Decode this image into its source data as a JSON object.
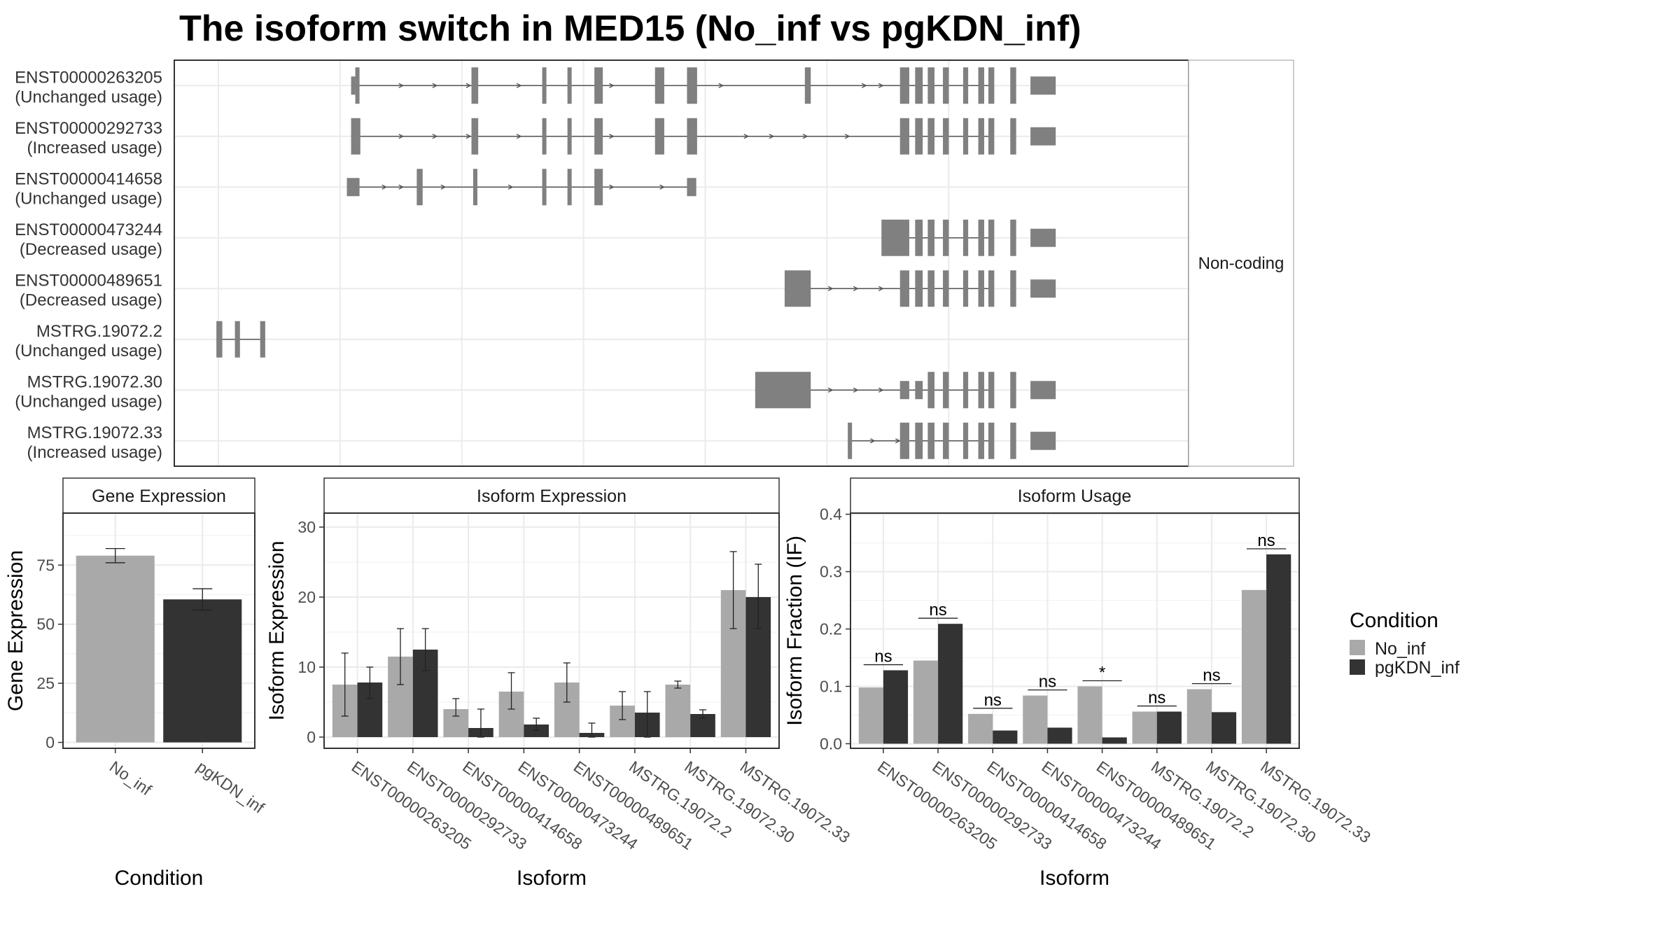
{
  "title": "The isoform switch in MED15 (No_inf vs pgKDN_inf)",
  "colors": {
    "no_inf": "#a9a9a9",
    "pgkdn_inf": "#333333",
    "exon": "#808080",
    "grid": "#ebebeb",
    "panel_border": "#333333",
    "strip_fill": "#ffffff"
  },
  "structure": {
    "side_label": "Non-coding",
    "transcripts": [
      {
        "id": "ENST00000263205",
        "usage": "(Unchanged usage)",
        "intron": [
          0.21,
          0.97
        ],
        "exons": [
          [
            0.21,
            0.215
          ],
          [
            0.215,
            0.22
          ],
          [
            0.353,
            0.361
          ],
          [
            0.437,
            0.442
          ],
          [
            0.467,
            0.472
          ],
          [
            0.499,
            0.509
          ],
          [
            0.571,
            0.582
          ],
          [
            0.609,
            0.621
          ],
          [
            0.749,
            0.756
          ],
          [
            0.862,
            0.873
          ],
          [
            0.88,
            0.889
          ],
          [
            0.895,
            0.903
          ],
          [
            0.913,
            0.92
          ],
          [
            0.937,
            0.943
          ],
          [
            0.955,
            0.962
          ],
          [
            0.967,
            0.974
          ],
          [
            0.993,
            1.0
          ],
          [
            1.017,
            1.047
          ]
        ],
        "thin": [
          [
            0.21,
            0.215
          ],
          [
            1.017,
            1.047
          ]
        ],
        "arrows": [
          0.27,
          0.31,
          0.35,
          0.41,
          0.52,
          0.65,
          0.82,
          0.84,
          0.87
        ]
      },
      {
        "id": "ENST00000292733",
        "usage": "(Increased usage)",
        "intron": [
          0.21,
          0.97
        ],
        "exons": [
          [
            0.21,
            0.221
          ],
          [
            0.353,
            0.361
          ],
          [
            0.437,
            0.442
          ],
          [
            0.467,
            0.472
          ],
          [
            0.499,
            0.509
          ],
          [
            0.571,
            0.582
          ],
          [
            0.609,
            0.621
          ],
          [
            0.862,
            0.873
          ],
          [
            0.88,
            0.889
          ],
          [
            0.895,
            0.903
          ],
          [
            0.913,
            0.92
          ],
          [
            0.937,
            0.943
          ],
          [
            0.955,
            0.962
          ],
          [
            0.967,
            0.974
          ],
          [
            0.993,
            1.0
          ],
          [
            1.017,
            1.047
          ]
        ],
        "thin": [
          [
            0.21,
            0.215
          ],
          [
            1.017,
            1.047
          ]
        ],
        "arrows": [
          0.27,
          0.31,
          0.35,
          0.41,
          0.52,
          0.68,
          0.71,
          0.75,
          0.8
        ]
      },
      {
        "id": "ENST00000414658",
        "usage": "(Unchanged usage)",
        "intron": [
          0.205,
          0.62
        ],
        "exons": [
          [
            0.205,
            0.22
          ],
          [
            0.288,
            0.295
          ],
          [
            0.355,
            0.36
          ],
          [
            0.437,
            0.442
          ],
          [
            0.467,
            0.472
          ],
          [
            0.499,
            0.509
          ],
          [
            0.609,
            0.62
          ]
        ],
        "thin": [
          [
            0.205,
            0.22
          ],
          [
            0.609,
            0.62
          ]
        ],
        "arrows": [
          0.25,
          0.27,
          0.32,
          0.4,
          0.52,
          0.58
        ]
      },
      {
        "id": "ENST00000473244",
        "usage": "(Decreased usage)",
        "intron": [
          0.84,
          0.97
        ],
        "exons": [
          [
            0.84,
            0.873
          ],
          [
            0.88,
            0.889
          ],
          [
            0.895,
            0.903
          ],
          [
            0.913,
            0.92
          ],
          [
            0.937,
            0.943
          ],
          [
            0.955,
            0.962
          ],
          [
            0.967,
            0.974
          ],
          [
            0.993,
            1.0
          ],
          [
            1.017,
            1.047
          ]
        ],
        "thin": [
          [
            0.84,
            0.86
          ],
          [
            1.017,
            1.047
          ]
        ],
        "arrows": []
      },
      {
        "id": "ENST00000489651",
        "usage": "(Decreased usage)",
        "intron": [
          0.725,
          0.97
        ],
        "exons": [
          [
            0.725,
            0.756
          ],
          [
            0.862,
            0.873
          ],
          [
            0.88,
            0.889
          ],
          [
            0.895,
            0.903
          ],
          [
            0.913,
            0.92
          ],
          [
            0.937,
            0.943
          ],
          [
            0.955,
            0.962
          ],
          [
            0.967,
            0.974
          ],
          [
            0.993,
            1.0
          ],
          [
            1.017,
            1.047
          ]
        ],
        "thin": [
          [
            0.725,
            0.75
          ],
          [
            1.017,
            1.047
          ]
        ],
        "arrows": [
          0.78,
          0.81,
          0.84
        ]
      },
      {
        "id": "MSTRG.19072.2",
        "usage": "(Unchanged usage)",
        "intron": [
          0.05,
          0.108
        ],
        "exons": [
          [
            0.05,
            0.057
          ],
          [
            0.072,
            0.078
          ],
          [
            0.102,
            0.108
          ]
        ],
        "thin": [],
        "arrows": []
      },
      {
        "id": "MSTRG.19072.30",
        "usage": "(Unchanged usage)",
        "intron": [
          0.69,
          0.97
        ],
        "exons": [
          [
            0.69,
            0.756
          ],
          [
            0.862,
            0.873
          ],
          [
            0.88,
            0.889
          ],
          [
            0.895,
            0.903
          ],
          [
            0.913,
            0.92
          ],
          [
            0.937,
            0.943
          ],
          [
            0.955,
            0.962
          ],
          [
            0.967,
            0.974
          ],
          [
            0.993,
            1.0
          ],
          [
            1.017,
            1.047
          ]
        ],
        "thin": [
          [
            0.69,
            0.75
          ],
          [
            0.862,
            0.873
          ],
          [
            0.88,
            0.889
          ],
          [
            0.895,
            0.9
          ],
          [
            1.017,
            1.047
          ]
        ],
        "arrows": [
          0.78,
          0.81,
          0.84
        ]
      },
      {
        "id": "MSTRG.19072.33",
        "usage": "(Increased usage)",
        "intron": [
          0.8,
          0.97
        ],
        "exons": [
          [
            0.8,
            0.805
          ],
          [
            0.862,
            0.873
          ],
          [
            0.88,
            0.889
          ],
          [
            0.895,
            0.903
          ],
          [
            0.913,
            0.92
          ],
          [
            0.937,
            0.943
          ],
          [
            0.955,
            0.962
          ],
          [
            0.967,
            0.974
          ],
          [
            0.993,
            1.0
          ],
          [
            1.017,
            1.047
          ]
        ],
        "thin": [
          [
            0.862,
            0.866
          ],
          [
            1.017,
            1.047
          ]
        ],
        "arrows": [
          0.83,
          0.86
        ]
      }
    ]
  },
  "chart_data": [
    {
      "type": "bar",
      "title": "Gene Expression",
      "xlabel": "Condition",
      "ylabel": "Gene Expression",
      "categories": [
        "No_inf",
        "pgKDN_inf"
      ],
      "values": [
        79,
        60.5
      ],
      "errors": [
        [
          76,
          82
        ],
        [
          56,
          65
        ]
      ],
      "ylim": [
        -2.5,
        97
      ],
      "yticks": [
        0,
        25,
        50,
        75
      ],
      "grid": true
    },
    {
      "type": "bar",
      "title": "Isoform Expression",
      "xlabel": "Isoform",
      "ylabel": "Isoform Expression",
      "categories": [
        "ENST00000263205",
        "ENST00000292733",
        "ENST00000414658",
        "ENST00000473244",
        "ENST00000489651",
        "MSTRG.19072.2",
        "MSTRG.19072.30",
        "MSTRG.19072.33"
      ],
      "series": [
        {
          "name": "No_inf",
          "values": [
            7.5,
            11.5,
            4.0,
            6.5,
            7.8,
            4.5,
            7.5,
            21.0
          ],
          "errors": [
            [
              3.0,
              12.0
            ],
            [
              7.5,
              15.5
            ],
            [
              3.0,
              5.5
            ],
            [
              4.0,
              9.2
            ],
            [
              5.0,
              10.6
            ],
            [
              2.5,
              6.5
            ],
            [
              7.0,
              8.0
            ],
            [
              15.5,
              26.5
            ]
          ]
        },
        {
          "name": "pgKDN_inf",
          "values": [
            7.8,
            12.5,
            1.3,
            1.8,
            0.6,
            3.5,
            3.3,
            20.0
          ],
          "errors": [
            [
              5.5,
              10.0
            ],
            [
              9.5,
              15.5
            ],
            [
              0,
              4.0
            ],
            [
              1.0,
              2.7
            ],
            [
              0,
              2.0
            ],
            [
              0,
              6.5
            ],
            [
              2.7,
              3.9
            ],
            [
              15.5,
              24.7
            ]
          ]
        }
      ],
      "ylim": [
        -1.6,
        32
      ],
      "yticks": [
        0,
        10,
        20,
        30
      ],
      "grid": true
    },
    {
      "type": "bar",
      "title": "Isoform Usage",
      "xlabel": "Isoform",
      "ylabel": "Isoform Fraction (IF)",
      "categories": [
        "ENST00000263205",
        "ENST00000292733",
        "ENST00000414658",
        "ENST00000473244",
        "ENST00000489651",
        "MSTRG.19072.2",
        "MSTRG.19072.30",
        "MSTRG.19072.33"
      ],
      "series": [
        {
          "name": "No_inf",
          "values": [
            0.098,
            0.145,
            0.052,
            0.084,
            0.1,
            0.056,
            0.095,
            0.268
          ]
        },
        {
          "name": "pgKDN_inf",
          "values": [
            0.128,
            0.209,
            0.023,
            0.028,
            0.011,
            0.056,
            0.055,
            0.33
          ]
        }
      ],
      "significance": [
        "ns",
        "ns",
        "ns",
        "ns",
        "*",
        "ns",
        "ns",
        "ns"
      ],
      "ylim": [
        -0.008,
        0.402
      ],
      "yticks": [
        0.0,
        0.1,
        0.2,
        0.3,
        0.4
      ],
      "grid": true
    }
  ],
  "legend": {
    "title": "Condition",
    "items": [
      "No_inf",
      "pgKDN_inf"
    ]
  }
}
